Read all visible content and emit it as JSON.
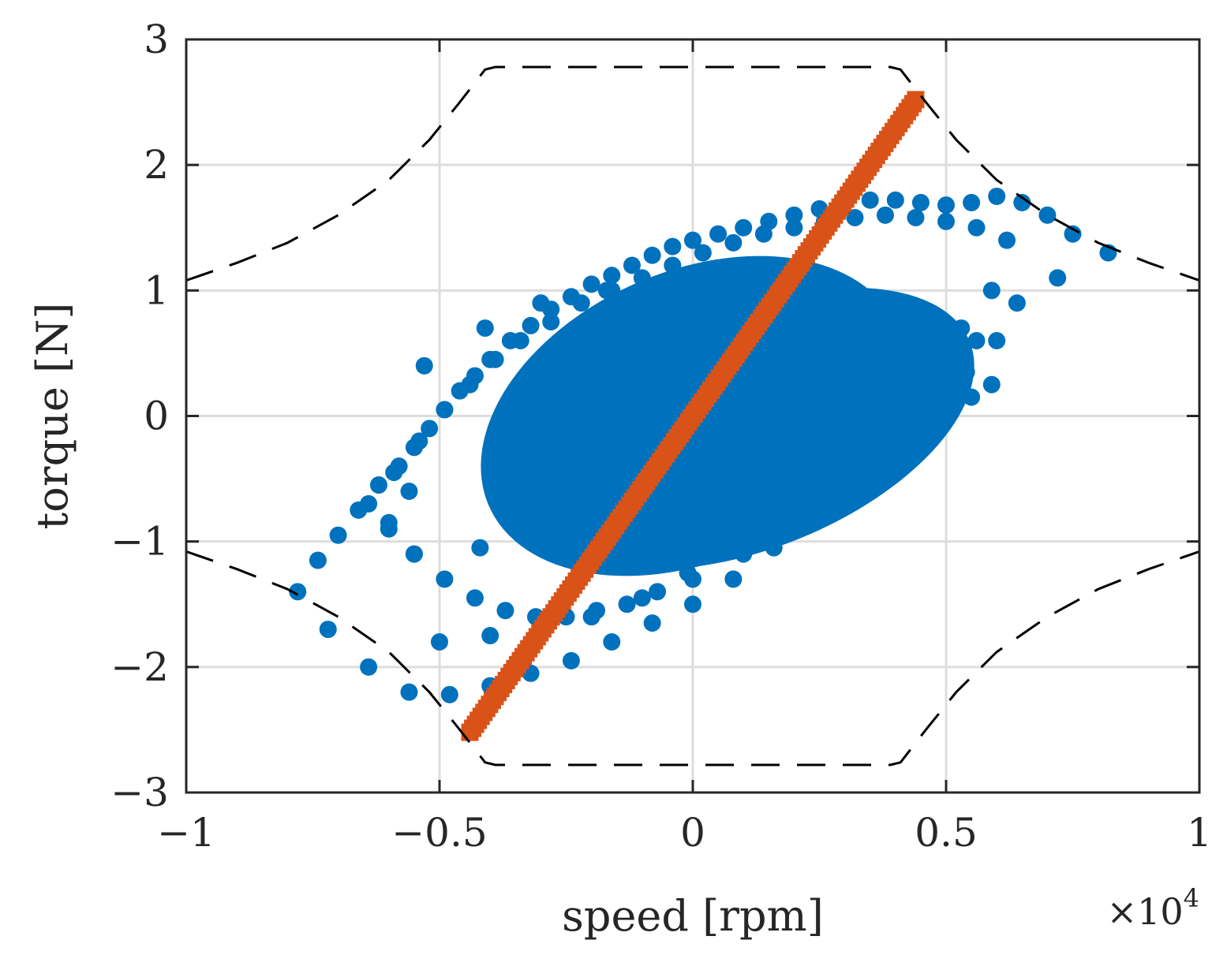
{
  "chart_data": {
    "type": "scatter",
    "title": "",
    "xlabel": "speed [rpm]",
    "ylabel": "torque [N]",
    "x_exponent_label": "×10",
    "x_exponent_power": "4",
    "x_scale_factor": 10000,
    "xlim": [
      -10000,
      10000
    ],
    "ylim": [
      -3,
      3
    ],
    "grid": true,
    "x_ticks": [
      {
        "value": -10000,
        "label": "−1"
      },
      {
        "value": -5000,
        "label": "−0.5"
      },
      {
        "value": 0,
        "label": "0"
      },
      {
        "value": 5000,
        "label": "0.5"
      },
      {
        "value": 10000,
        "label": "1"
      }
    ],
    "y_ticks": [
      {
        "value": -3,
        "label": "−3"
      },
      {
        "value": -2,
        "label": "−2"
      },
      {
        "value": -1,
        "label": "−1"
      },
      {
        "value": 0,
        "label": "0"
      },
      {
        "value": 1,
        "label": "1"
      },
      {
        "value": 2,
        "label": "2"
      },
      {
        "value": 3,
        "label": "3"
      }
    ],
    "colors": {
      "series_1": "#0072bd",
      "series_2": "#d95319",
      "limit": "#000000",
      "grid": "#dddddd",
      "axes": "#262626"
    },
    "series": [
      {
        "marker": "circle",
        "description_region": "ellipse",
        "center": [
          0,
          0
        ],
        "x": [
          -7800,
          -7400,
          -7000,
          -6600,
          -6200,
          -5800,
          -5500,
          -5200,
          -4900,
          -4600,
          -4300,
          -4000,
          -3600,
          -3200,
          -2800,
          -2400,
          -2000,
          -1600,
          -1200,
          -800,
          -400,
          0,
          500,
          1000,
          1500,
          2000,
          2500,
          3000,
          3500,
          4000,
          4500,
          5000,
          5500,
          6000,
          6500,
          7000,
          7500,
          8200,
          7200,
          6400,
          5600,
          4800,
          4000,
          3200,
          2400,
          1600,
          800,
          0,
          -800,
          -1600,
          -2400,
          -3200,
          -4000,
          -4800,
          -5600,
          -6400,
          -7200,
          -5000,
          -4000,
          -3000,
          -2000,
          -1000,
          0,
          1000,
          2000,
          3000,
          4000,
          5000,
          6000,
          -6400,
          -5900,
          -5400,
          -4900,
          -4400,
          -3900,
          -3400,
          -2800,
          -2200,
          -1600,
          -1000,
          -400,
          200,
          800,
          1400,
          2000,
          2600,
          3200,
          3800,
          4400,
          5000,
          5600,
          6200,
          5900,
          5300,
          4700,
          4100,
          3500,
          2900,
          2300,
          1700,
          1100,
          500,
          -100,
          -700,
          -1300,
          -1900,
          -2500,
          -3100,
          -3700,
          -4300,
          -4900,
          -5500,
          -6000,
          -5600,
          -6000,
          -5500,
          -4200,
          -3100,
          -2200,
          -1000,
          400,
          1700,
          3000,
          4200,
          5500,
          5900,
          5400,
          4200,
          2900,
          1400,
          -200,
          -1700,
          -3000,
          -4100,
          -5300
        ],
        "y": [
          -1.4,
          -1.15,
          -0.95,
          -0.75,
          -0.55,
          -0.4,
          -0.25,
          -0.1,
          0.05,
          0.2,
          0.32,
          0.45,
          0.6,
          0.72,
          0.85,
          0.95,
          1.05,
          1.12,
          1.2,
          1.28,
          1.35,
          1.4,
          1.45,
          1.5,
          1.55,
          1.6,
          1.65,
          1.7,
          1.72,
          1.72,
          1.7,
          1.68,
          1.7,
          1.75,
          1.7,
          1.6,
          1.45,
          1.3,
          1.1,
          0.9,
          0.6,
          0.25,
          -0.1,
          -0.45,
          -0.75,
          -1.05,
          -1.3,
          -1.5,
          -1.65,
          -1.8,
          -1.95,
          -2.05,
          -2.15,
          -2.22,
          -2.2,
          -2.0,
          -1.7,
          -1.8,
          -1.75,
          -1.7,
          -1.6,
          -1.45,
          -1.3,
          -1.1,
          -0.85,
          -0.55,
          -0.2,
          0.2,
          0.6,
          -0.7,
          -0.45,
          -0.2,
          0.05,
          0.25,
          0.45,
          0.6,
          0.75,
          0.9,
          1.0,
          1.1,
          1.2,
          1.3,
          1.38,
          1.45,
          1.5,
          1.55,
          1.58,
          1.6,
          1.58,
          1.55,
          1.5,
          1.4,
          1.0,
          0.7,
          0.45,
          0.2,
          -0.05,
          -0.3,
          -0.5,
          -0.7,
          -0.9,
          -1.1,
          -1.25,
          -1.4,
          -1.5,
          -1.55,
          -1.6,
          -1.6,
          -1.55,
          -1.45,
          -1.3,
          -1.1,
          -0.85,
          -0.6,
          -0.9,
          -1.1,
          -1.05,
          -1.0,
          -0.95,
          -0.85,
          -0.7,
          -0.55,
          -0.35,
          -0.1,
          0.15,
          0.25,
          0.35,
          0.45,
          0.6,
          0.8,
          0.95,
          1.0,
          0.9,
          0.7,
          0.4
        ]
      },
      {
        "marker": "square",
        "x_range": [
          -4400,
          4400
        ],
        "y_range": [
          -2.52,
          2.52
        ],
        "points": 160
      },
      {
        "line": "dashed",
        "x": [
          -10000,
          -9000,
          -8000,
          -7000,
          -6000,
          -5200,
          -4600,
          -4100,
          -3900,
          3900,
          4100,
          4600,
          5200,
          6000,
          7000,
          8000,
          9000,
          10000
        ],
        "y": [
          1.08,
          1.22,
          1.38,
          1.6,
          1.88,
          2.2,
          2.5,
          2.76,
          2.78,
          2.78,
          2.76,
          2.5,
          2.2,
          1.88,
          1.6,
          1.38,
          1.22,
          1.08
        ]
      },
      {
        "line": "dashed",
        "x": [
          -10000,
          -9000,
          -8000,
          -7000,
          -6000,
          -5200,
          -4600,
          -4100,
          -3900,
          3900,
          4100,
          4600,
          5200,
          6000,
          7000,
          8000,
          9000,
          10000
        ],
        "y": [
          -1.08,
          -1.22,
          -1.38,
          -1.6,
          -1.88,
          -2.2,
          -2.5,
          -2.76,
          -2.78,
          -2.78,
          -2.76,
          -2.5,
          -2.2,
          -1.88,
          -1.6,
          -1.38,
          -1.22,
          -1.08
        ]
      }
    ]
  }
}
